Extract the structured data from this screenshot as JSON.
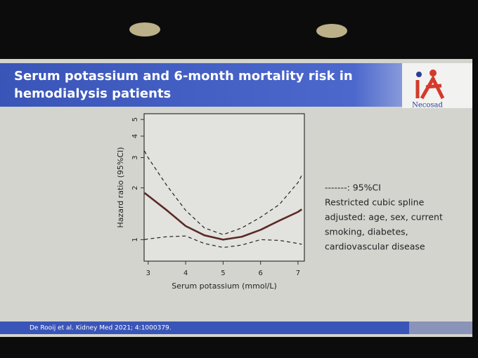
{
  "slide": {
    "title_lines": [
      "Serum potassium and 6-month mortality risk in",
      "hemodialysis patients"
    ],
    "logo": "Necosad",
    "citation": "De Rooij et al. Kidney Med 2021; 4:1000379."
  },
  "chart_data": {
    "type": "line",
    "x_label": "Serum potassium (mmol/L)",
    "y_label": "Hazard ratio (95%CI)",
    "x": [
      2.9,
      3,
      3.5,
      4,
      4.5,
      5,
      5.5,
      6,
      6.5,
      7,
      7.1
    ],
    "series": [
      {
        "name": "Restricted cubic spline",
        "color": "#5a2a26",
        "dashed": false,
        "values": [
          1.87,
          1.8,
          1.48,
          1.2,
          1.06,
          1.0,
          1.04,
          1.14,
          1.29,
          1.45,
          1.5
        ]
      },
      {
        "name": "95%CI",
        "color": "#222222",
        "dashed": true,
        "values": [
          3.28,
          2.99,
          2.06,
          1.48,
          1.17,
          1.07,
          1.17,
          1.35,
          1.6,
          2.15,
          2.37
        ]
      },
      {
        "name": "95%CI",
        "color": "#222222",
        "dashed": true,
        "values": [
          1.0,
          1.01,
          1.04,
          1.05,
          0.95,
          0.9,
          0.93,
          1.0,
          0.99,
          0.95,
          0.94
        ]
      }
    ],
    "xlim": [
      2.89,
      7.17
    ],
    "xticks": [
      3,
      4,
      5,
      6,
      7
    ],
    "ylim": [
      0.75,
      5.4
    ],
    "yticks": [
      1,
      2,
      3,
      4,
      5
    ],
    "log_y": true,
    "annotations": [
      "-------: 95%CI",
      "Restricted cubic spline",
      "adjusted: age, sex, current",
      "smoking, diabetes,",
      "cardiovascular disease"
    ]
  }
}
